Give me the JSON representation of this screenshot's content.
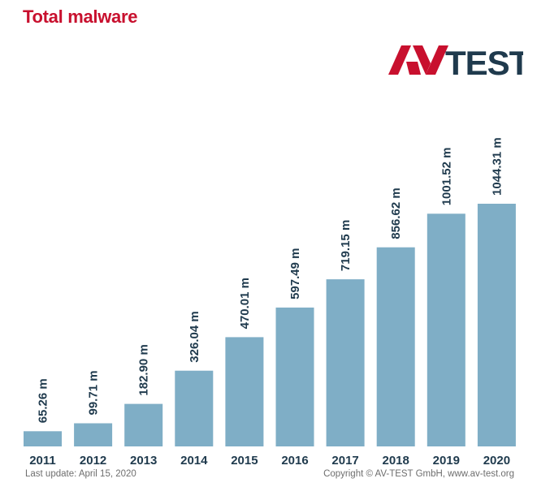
{
  "header": {
    "title": "Total malware"
  },
  "logo": {
    "text_av": "AV",
    "text_test": "TEST",
    "color_red": "#c8102e",
    "color_dark": "#1f3a4d"
  },
  "footer": {
    "last_update": "Last update: April 15, 2020",
    "copyright": "Copyright © AV-TEST GmbH, www.av-test.org"
  },
  "chart_data": {
    "type": "bar",
    "title": "Total malware",
    "categories": [
      "2011",
      "2012",
      "2013",
      "2014",
      "2015",
      "2016",
      "2017",
      "2018",
      "2019",
      "2020"
    ],
    "values": [
      65.26,
      99.71,
      182.9,
      326.04,
      470.01,
      597.49,
      719.15,
      856.62,
      1001.52,
      1044.31
    ],
    "value_labels": [
      "65.26 m",
      "99.71 m",
      "182.90 m",
      "326.04 m",
      "470.01 m",
      "597.49 m",
      "719.15 m",
      "856.62 m",
      "1001.52 m",
      "1044.31 m"
    ],
    "unit": "m",
    "bar_color": "#7faec6",
    "label_color": "#1f3a4d",
    "grid": false,
    "legend": "none"
  }
}
